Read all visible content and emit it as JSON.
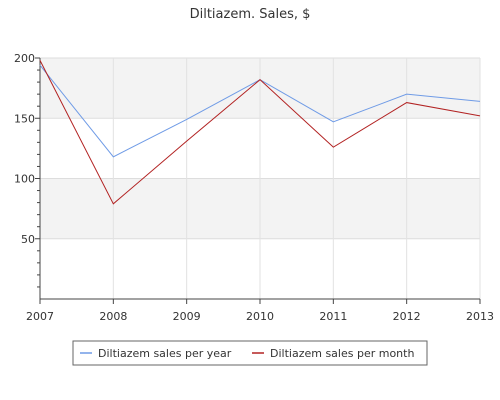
{
  "chart_data": {
    "type": "line",
    "title": "Diltiazem. Sales, $",
    "xlabel": "",
    "ylabel": "",
    "categories": [
      "2007",
      "2008",
      "2009",
      "2010",
      "2011",
      "2012",
      "2013"
    ],
    "ylim": [
      0,
      200
    ],
    "yticks": [
      50,
      100,
      150,
      200
    ],
    "grid": true,
    "legend_position": "bottom",
    "series": [
      {
        "name": "Diltiazem sales per year",
        "color": "#6f9be6",
        "values": [
          194,
          118,
          149,
          182,
          147,
          170,
          164
        ]
      },
      {
        "name": "Diltiazem sales per month",
        "color": "#b22222",
        "values": [
          198,
          79,
          131,
          182,
          126,
          163,
          152
        ]
      }
    ]
  }
}
